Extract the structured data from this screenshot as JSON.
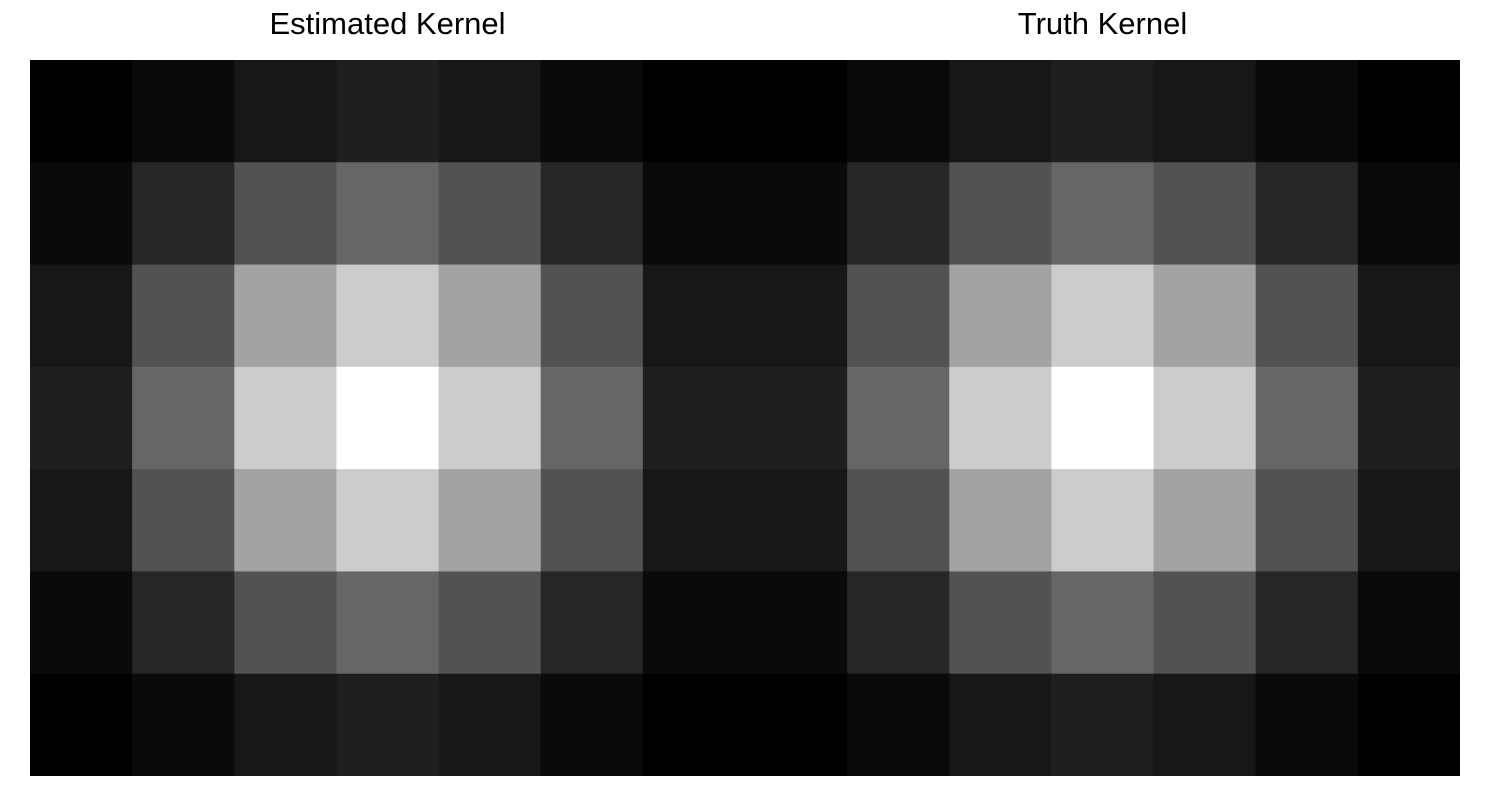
{
  "chart_data": [
    {
      "type": "heatmap",
      "title": "Estimated Kernel",
      "xlabel": "",
      "ylabel": "",
      "grid": false,
      "legend": "none",
      "colormap": "gray",
      "rows": 7,
      "cols": 7,
      "values": [
        [
          0.0,
          0.04,
          0.09,
          0.12,
          0.09,
          0.04,
          0.0
        ],
        [
          0.04,
          0.15,
          0.32,
          0.4,
          0.32,
          0.15,
          0.04
        ],
        [
          0.09,
          0.32,
          0.64,
          0.8,
          0.64,
          0.32,
          0.09
        ],
        [
          0.12,
          0.4,
          0.8,
          1.0,
          0.8,
          0.4,
          0.12
        ],
        [
          0.09,
          0.32,
          0.64,
          0.8,
          0.64,
          0.32,
          0.09
        ],
        [
          0.04,
          0.15,
          0.32,
          0.4,
          0.32,
          0.15,
          0.04
        ],
        [
          0.0,
          0.04,
          0.09,
          0.12,
          0.09,
          0.04,
          0.0
        ]
      ]
    },
    {
      "type": "heatmap",
      "title": "Truth Kernel",
      "xlabel": "",
      "ylabel": "",
      "grid": false,
      "legend": "none",
      "colormap": "gray",
      "rows": 7,
      "cols": 7,
      "values": [
        [
          0.0,
          0.04,
          0.09,
          0.12,
          0.09,
          0.04,
          0.0
        ],
        [
          0.04,
          0.15,
          0.32,
          0.4,
          0.32,
          0.15,
          0.04
        ],
        [
          0.09,
          0.32,
          0.64,
          0.8,
          0.64,
          0.32,
          0.09
        ],
        [
          0.12,
          0.4,
          0.8,
          1.0,
          0.8,
          0.4,
          0.12
        ],
        [
          0.09,
          0.32,
          0.64,
          0.8,
          0.64,
          0.32,
          0.09
        ],
        [
          0.04,
          0.15,
          0.32,
          0.4,
          0.32,
          0.15,
          0.04
        ],
        [
          0.0,
          0.04,
          0.09,
          0.12,
          0.09,
          0.04,
          0.0
        ]
      ]
    }
  ]
}
